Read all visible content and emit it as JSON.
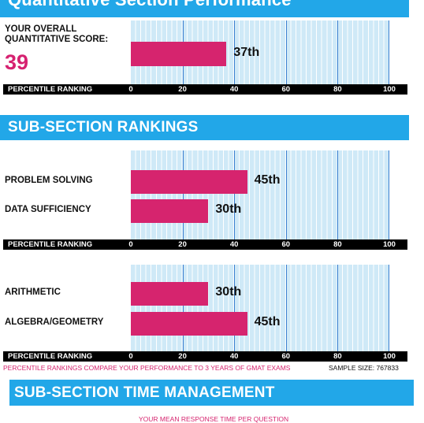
{
  "page": {
    "top_banner": "Quantitative Section Performance",
    "score_label_line1": "YOUR OVERALL",
    "score_label_line2": "QUANTITATIVE SCORE:",
    "score_value": "39",
    "sub_banner": "SUB-SECTION RANKINGS",
    "axis_title": "PERCENTILE RANKING",
    "footnote": "PERCENTILE RANKINGS COMPARE YOUR PERFORMANCE TO 3 YEARS OF GMAT EXAMS",
    "sample_size": "SAMPLE SIZE: 767833",
    "time_banner": "SUB-SECTION TIME MANAGEMENT",
    "response_time_caption": "YOUR MEAN RESPONSE TIME PER QUESTION"
  },
  "chart_data": [
    {
      "type": "bar",
      "orientation": "horizontal",
      "xlabel": "PERCENTILE RANKING",
      "xlim": [
        0,
        100
      ],
      "xticks": [
        "0",
        "20",
        "40",
        "60",
        "80",
        "100"
      ],
      "categories": [
        ""
      ],
      "values": [
        37
      ],
      "data_labels": [
        "37th"
      ]
    },
    {
      "type": "bar",
      "orientation": "horizontal",
      "xlabel": "PERCENTILE RANKING",
      "xlim": [
        0,
        100
      ],
      "xticks": [
        "0",
        "20",
        "40",
        "60",
        "80",
        "100"
      ],
      "categories": [
        "PROBLEM SOLVING",
        "DATA SUFFICIENCY"
      ],
      "values": [
        45,
        30
      ],
      "data_labels": [
        "45th",
        "30th"
      ]
    },
    {
      "type": "bar",
      "orientation": "horizontal",
      "xlabel": "PERCENTILE RANKING",
      "xlim": [
        0,
        100
      ],
      "xticks": [
        "0",
        "20",
        "40",
        "60",
        "80",
        "100"
      ],
      "categories": [
        "ARITHMETIC",
        "ALGEBRA/GEOMETRY"
      ],
      "values": [
        30,
        45
      ],
      "data_labels": [
        "30th",
        "45th"
      ]
    }
  ],
  "colors": {
    "banner": "#22a7e8",
    "bar": "#d6246e",
    "plot_bg": "#cfe9f7",
    "gridline": "#3a7fd0"
  }
}
